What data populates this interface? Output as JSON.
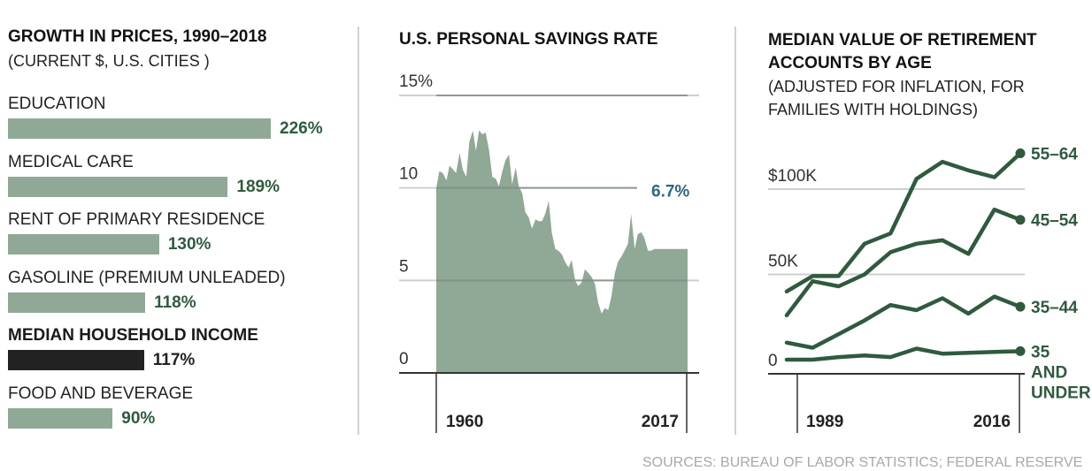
{
  "chart_data": [
    {
      "type": "bar",
      "title": "GROWTH IN PRICES, 1990–2018",
      "subtitle": "(CURRENT $, U.S. CITIES )",
      "orientation": "horizontal",
      "categories": [
        "EDUCATION",
        "MEDICAL CARE",
        "RENT OF PRIMARY RESIDENCE",
        "GASOLINE (PREMIUM UNLEADED)",
        "MEDIAN HOUSEHOLD INCOME",
        "FOOD AND BEVERAGE"
      ],
      "values": [
        226,
        189,
        130,
        118,
        117,
        90
      ],
      "value_labels": [
        "226%",
        "189%",
        "130%",
        "118%",
        "117%",
        "90%"
      ],
      "highlight": [
        false,
        false,
        false,
        false,
        true,
        false
      ],
      "colors": {
        "bar": "#90a896",
        "highlight_bar": "#222222",
        "value_text": "#2f5a3e",
        "highlight_text": "#222222"
      },
      "xlim": [
        0,
        226
      ]
    },
    {
      "type": "area",
      "title": "U.S. PERSONAL SAVINGS RATE",
      "ylabel": "",
      "xlabel": "",
      "y_ticks": [
        0,
        5,
        10,
        15
      ],
      "y_tick_labels": [
        "0",
        "5",
        "10",
        "15%"
      ],
      "ylim": [
        0,
        15
      ],
      "xlim": [
        1960,
        2017
      ],
      "x_tick_labels": [
        "1960",
        "2017"
      ],
      "annotation": {
        "text": "6.7%",
        "color": "#2f6585"
      },
      "grid": true,
      "fill_color": "#90a896",
      "x": [
        1960,
        1960.7,
        1961.5,
        1962.3,
        1963,
        1963.8,
        1964.5,
        1965.3,
        1966,
        1966.8,
        1967.5,
        1968.3,
        1969,
        1969.7,
        1970.5,
        1971.2,
        1972,
        1972.7,
        1973.5,
        1974.2,
        1975,
        1975.7,
        1976.5,
        1977.2,
        1978,
        1978.7,
        1979.5,
        1980.2,
        1981,
        1981.7,
        1982.5,
        1983.2,
        1984,
        1984.7,
        1985.5,
        1986.2,
        1987,
        1987.7,
        1988.5,
        1989.2,
        1990,
        1990.7,
        1991.5,
        1992.2,
        1993,
        1993.7,
        1994.5,
        1995.2,
        1996,
        1996.7,
        1997.5,
        1998.2,
        1999,
        1999.7,
        2000.5,
        2001.2,
        2002,
        2002.7,
        2003.5,
        2004.2,
        2005,
        2005.7,
        2006.5,
        2007.2,
        2008,
        2008.7,
        2009.5,
        2010.2,
        2011,
        2011.7,
        2012.5,
        2013.2,
        2014,
        2014.7,
        2015.5,
        2016.2,
        2017
      ],
      "y": [
        10.0,
        10.9,
        10.8,
        10.4,
        11.2,
        11.0,
        10.8,
        11.9,
        11.0,
        10.6,
        12.5,
        13.1,
        12.0,
        13.1,
        12.9,
        13.0,
        12.0,
        10.6,
        10.5,
        10.1,
        10.9,
        11.5,
        11.8,
        10.2,
        11.1,
        10.1,
        9.7,
        8.7,
        8.4,
        7.8,
        8.3,
        8.2,
        8.2,
        8.6,
        9.3,
        7.6,
        6.7,
        6.6,
        6.4,
        6.0,
        5.7,
        6.1,
        5.0,
        4.7,
        4.9,
        5.6,
        5.4,
        5.2,
        4.8,
        3.8,
        3.2,
        3.5,
        3.4,
        4.1,
        5.4,
        6.0,
        6.3,
        6.6,
        7.0,
        8.6,
        6.7,
        7.5,
        7.6,
        7.3,
        6.6,
        6.6,
        6.7,
        6.7,
        6.7,
        6.7,
        6.7,
        6.7,
        6.7,
        6.7,
        6.7,
        6.7,
        6.7
      ]
    },
    {
      "type": "line",
      "title": "MEDIAN VALUE OF RETIREMENT ACCOUNTS BY AGE",
      "subtitle": "(ADJUSTED FOR INFLATION, FOR FAMILIES WITH HOLDINGS)",
      "y_ticks": [
        0,
        50000,
        100000
      ],
      "y_tick_labels": [
        "0",
        "50K",
        "$100K"
      ],
      "ylim": [
        0,
        125000
      ],
      "x": [
        1989,
        1992,
        1995,
        1998,
        2001,
        2004,
        2007,
        2010,
        2013,
        2016
      ],
      "x_tick_labels": [
        "1989",
        "2016"
      ],
      "grid": true,
      "line_color": "#2f5a3e",
      "series": [
        {
          "name": "55–64",
          "label_lines": [
            "55–64"
          ],
          "values": [
            40000,
            49000,
            49000,
            68000,
            74000,
            106000,
            116000,
            111000,
            107000,
            121000
          ]
        },
        {
          "name": "45–54",
          "label_lines": [
            "45–54"
          ],
          "values": [
            26000,
            46000,
            43000,
            50000,
            63000,
            68000,
            70000,
            62000,
            88000,
            82000
          ]
        },
        {
          "name": "35–44",
          "label_lines": [
            "35–44"
          ],
          "values": [
            10000,
            7000,
            15000,
            23000,
            32000,
            29000,
            36000,
            27000,
            37000,
            31000
          ]
        },
        {
          "name": "35 AND UNDER",
          "label_lines": [
            "35",
            "AND",
            "UNDER"
          ],
          "values": [
            0,
            0,
            1500,
            2500,
            1500,
            6500,
            3500,
            4000,
            4500,
            5000
          ]
        }
      ]
    }
  ],
  "footer": {
    "sources": "SOURCES: BUREAU OF LABOR STATISTICS; FEDERAL RESERVE"
  }
}
